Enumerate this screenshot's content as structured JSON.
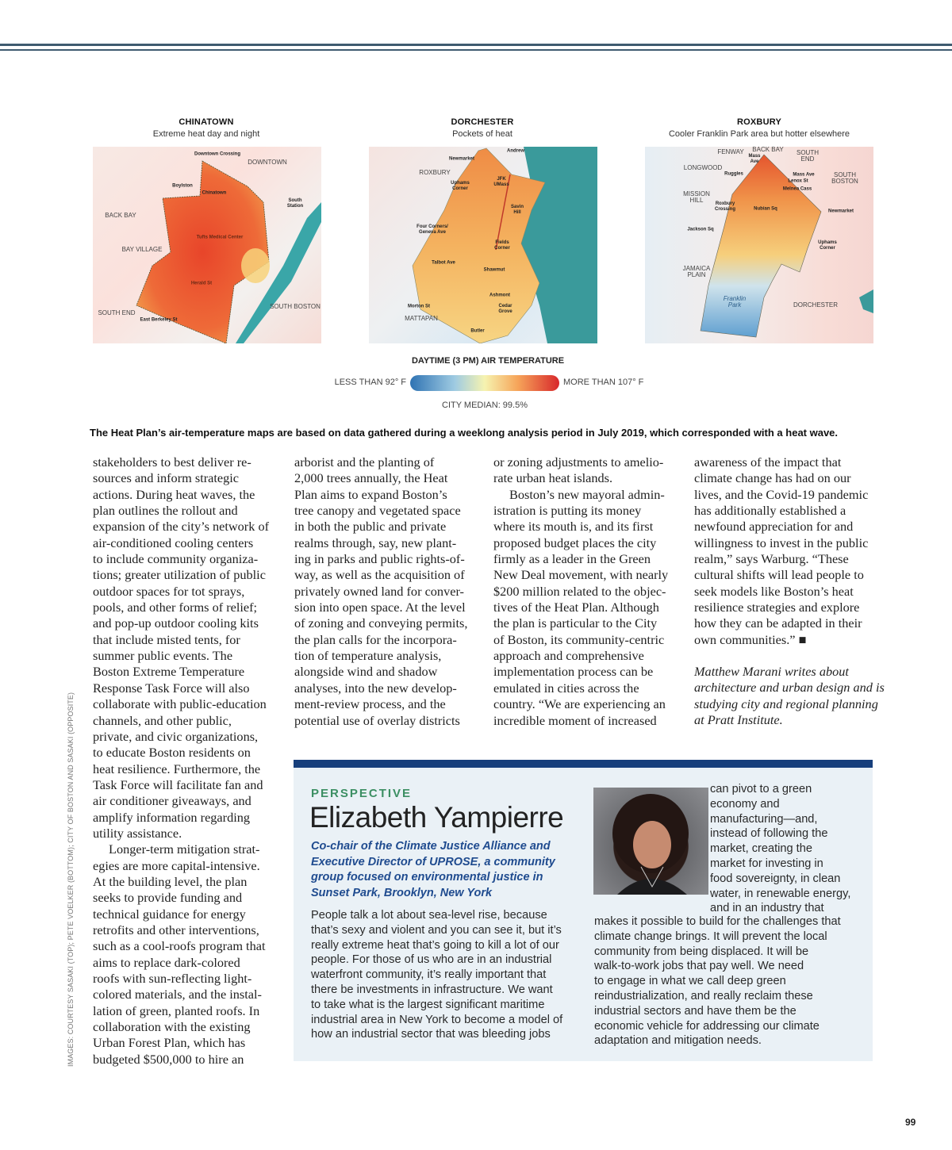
{
  "maps": [
    {
      "title": "CHINATOWN",
      "subtitle": "Extreme heat day and night",
      "labels": [
        "Downtown Crossing",
        "DOWNTOWN",
        "Boylston",
        "Chinatown",
        "South Station",
        "BACK BAY",
        "BAY VILLAGE",
        "Tufts Medical Center",
        "Herald St",
        "SOUTH BOSTON",
        "SOUTH END",
        "East Berkeley St"
      ]
    },
    {
      "title": "DORCHESTER",
      "subtitle": "Pockets of heat",
      "labels": [
        "Andrew",
        "Newmarket",
        "ROXBURY",
        "Uphams Corner",
        "JFK UMass",
        "Savin Hill",
        "Four Corners/ Geneva Ave",
        "Fields Corner",
        "Talbot Ave",
        "Shawmut",
        "Ashmont",
        "Morton St",
        "Cedar Grove",
        "MATTAPAN",
        "Butler"
      ]
    },
    {
      "title": "ROXBURY",
      "subtitle": "Cooler Franklin Park area but hotter elsewhere",
      "labels": [
        "FENWAY",
        "BACK BAY",
        "SOUTH END",
        "Mass Ave",
        "LONGWOOD",
        "Ruggles",
        "Mass Ave",
        "Lenox St",
        "SOUTH BOSTON",
        "Melnea Cass",
        "MISSION HILL",
        "Roxbury Crossing",
        "Nubian Sq",
        "Newmarket",
        "Jackson Sq",
        "Uphams Corner",
        "JAMAICA PLAIN",
        "Franklin Park",
        "DORCHESTER"
      ]
    }
  ],
  "legend": {
    "title": "DAYTIME (3 PM) AIR TEMPERATURE",
    "low": "LESS THAN 92° F",
    "high": "MORE THAN 107° F",
    "median": "CITY MEDIAN: 99.5%",
    "colors": [
      "#2f73b3",
      "#9fcbe2",
      "#f6f3b0",
      "#f6a55a",
      "#d8282b"
    ]
  },
  "caption": "The Heat Plan’s air-temperature maps are based on data gathered during a weeklong analysis period in July 2019, which corresponded with a heat wave.",
  "columns": [
    {
      "paragraphs": [
        [
          "stakeholders to best deliver re-",
          "sources and inform strategic",
          "actions. During heat waves, the",
          "plan outlines the rollout and",
          "expansion of the city’s network of",
          "air-conditioned cooling centers",
          "to include community organiza-",
          "tions; greater utilization of public",
          "outdoor spaces for tot sprays,",
          "pools, and other forms of relief;",
          "and pop-up outdoor cooling kits",
          "that include misted tents, for",
          "summer public events. The",
          "Boston Extreme Temperature",
          "Response Task Force will also",
          "collaborate with public-education",
          "channels, and other public,",
          "private, and civic organizations,",
          "to educate Boston residents on",
          "heat resilience. Furthermore, the",
          "Task Force will facilitate fan and",
          "air conditioner giveaways, and",
          "amplify information regarding",
          "utility assistance."
        ],
        [
          "Longer-term mitigation strat-",
          "egies are more capital-intensive.",
          "At the building level, the plan",
          "seeks to provide funding and",
          "technical guidance for energy",
          "retrofits and other interventions,",
          "such as a cool-roofs program that",
          "aims to replace dark-colored",
          "roofs with sun-reflecting light-",
          "colored materials, and the instal-",
          "lation of green, planted roofs. In",
          "collaboration with the existing",
          "Urban Forest Plan, which has",
          "budgeted $500,000 to hire an"
        ]
      ]
    },
    {
      "paragraphs": [
        [
          "arborist and the planting of",
          "2,000 trees annually, the Heat",
          "Plan aims to expand Boston’s",
          "tree canopy and vegetated space",
          "in both the public and private",
          "realms through, say, new plant-",
          "ing in parks and public rights-of-",
          "way, as well as the acquisition of",
          "privately owned land for conver-",
          "sion into open space. At the level",
          "of zoning and conveying permits,",
          "the plan calls for the incorpora-",
          "tion of temperature analysis,",
          "alongside wind and shadow",
          "analyses, into the new develop-",
          "ment-review process, and the",
          "potential use of overlay districts"
        ]
      ]
    },
    {
      "paragraphs": [
        [
          "or zoning adjustments to amelio-",
          "rate urban heat islands."
        ],
        [
          "Boston’s new mayoral admin-",
          "istration is putting its money",
          "where its mouth is, and its first",
          "proposed budget places the city",
          "firmly as a leader in the Green",
          "New Deal movement, with nearly",
          "$200 million related to the objec-",
          "tives of the Heat Plan. Although",
          "the plan is particular to the City",
          "of Boston, its community-centric",
          "approach and comprehensive",
          "implementation process can be",
          "emulated in cities across the",
          "country. “We are experiencing an",
          "incredible moment of increased"
        ]
      ]
    },
    {
      "paragraphs": [
        [
          "awareness of the impact that",
          "climate change has had on our",
          "lives, and the Covid-19 pandemic",
          "has additionally established a",
          "newfound appreciation for and",
          "willingness to invest in the public",
          "realm,” says Warburg. “These",
          "cultural shifts will lead people to",
          "seek models like Boston’s heat",
          "resilience strategies and explore",
          "how they can be adapted in their",
          "own communities.” ■"
        ]
      ],
      "byline": [
        "Matthew Marani writes about",
        "architecture and urban design and is",
        "studying city and regional planning",
        "at Pratt Institute."
      ]
    }
  ],
  "credit": "IMAGES: COURTESY SASAKI (TOP); PETE VOELKER (BOTTOM); CITY OF BOSTON AND SASAKI (OPPOSITE)",
  "perspective": {
    "kicker": "PERSPECTIVE",
    "name": "Elizabeth Yampierre",
    "role": "Co-chair of the Climate Justice Alliance and Executive Director of UPROSE, a community group focused on environmental justice in Sunset Park, Brooklyn, New York",
    "left_lines": [
      "People talk a lot about sea-level rise, because",
      "that’s sexy and violent and you can see it, but it’s",
      "really extreme heat that’s going to kill a lot of our",
      "people. For those of us who are in an industrial",
      "waterfront community, it’s really important that",
      "there be investments in infrastructure. We want",
      "to take what is the largest significant maritime",
      "industrial area in New York to become a model of",
      "how an industrial sector that was bleeding jobs"
    ],
    "right_top_lines": [
      "can pivot to a green",
      "economy and",
      "manufacturing—and,",
      "instead of following the",
      "market, creating the",
      "market for investing in",
      "food sovereignty, in clean",
      "water, in renewable energy,",
      "and in an industry that"
    ],
    "right_lines": [
      "makes it possible to build for the challenges that",
      "climate change brings. It will prevent the local",
      "community from being displaced. It will be",
      "walk-to-work jobs that pay well. We need",
      "to engage in what we call deep green",
      "reindustrialization, and really reclaim these",
      "industrial sectors and have them be the",
      "economic vehicle for addressing our climate",
      "adaptation and mitigation needs."
    ],
    "accent": "#173f7c",
    "kicker_color": "#3c8f63"
  },
  "page_number": "99"
}
